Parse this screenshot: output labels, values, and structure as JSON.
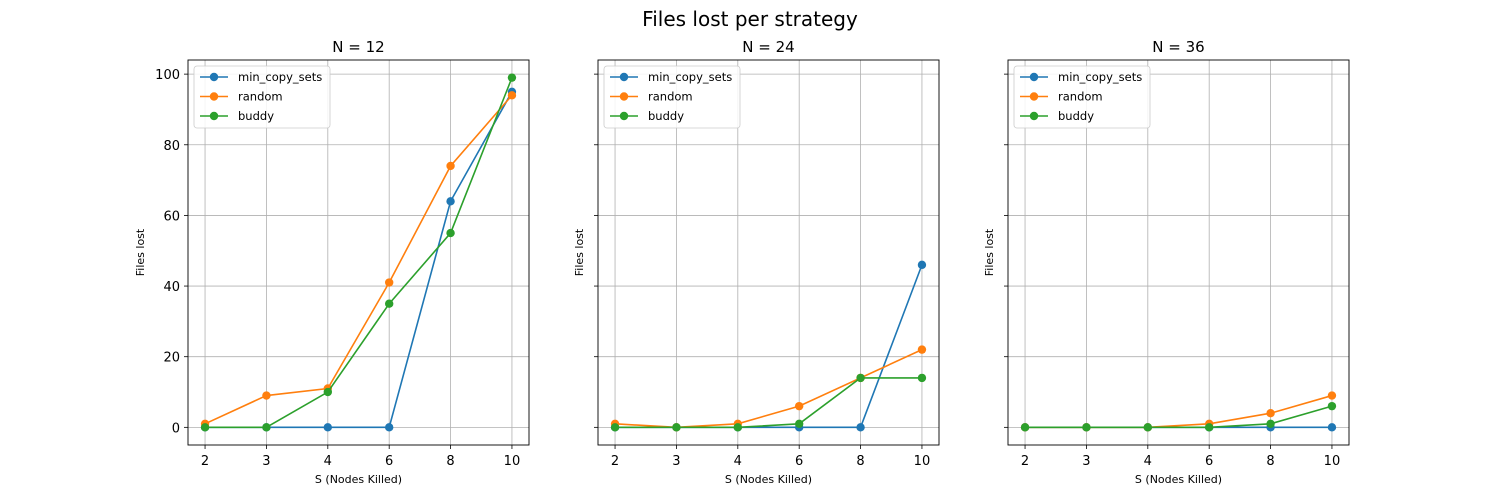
{
  "figure": {
    "title": "Files lost per strategy"
  },
  "chart_data": [
    {
      "type": "line",
      "title": "N = 12",
      "xlabel": "S (Nodes Killed)",
      "ylabel": "Files lost",
      "x": [
        "2",
        "3",
        "4",
        "6",
        "8",
        "10"
      ],
      "ylim": [
        -5,
        104
      ],
      "yticks": [
        0,
        20,
        40,
        60,
        80,
        100
      ],
      "show_ytick_labels": true,
      "grid": true,
      "legend": "top-left",
      "series": [
        {
          "name": "min_copy_sets",
          "color": "#1f77b4",
          "values": [
            0,
            0,
            0,
            0,
            64,
            95
          ]
        },
        {
          "name": "random",
          "color": "#ff7f0e",
          "values": [
            1,
            9,
            11,
            41,
            74,
            94
          ]
        },
        {
          "name": "buddy",
          "color": "#2ca02c",
          "values": [
            0,
            0,
            10,
            35,
            55,
            99
          ]
        }
      ]
    },
    {
      "type": "line",
      "title": "N = 24",
      "xlabel": "S (Nodes Killed)",
      "ylabel": "Files lost",
      "x": [
        "2",
        "3",
        "4",
        "6",
        "8",
        "10"
      ],
      "ylim": [
        -5,
        104
      ],
      "yticks": [
        0,
        20,
        40,
        60,
        80,
        100
      ],
      "show_ytick_labels": false,
      "grid": true,
      "legend": "top-left",
      "series": [
        {
          "name": "min_copy_sets",
          "color": "#1f77b4",
          "values": [
            0,
            0,
            0,
            0,
            0,
            46
          ]
        },
        {
          "name": "random",
          "color": "#ff7f0e",
          "values": [
            1,
            0,
            1,
            6,
            14,
            22
          ]
        },
        {
          "name": "buddy",
          "color": "#2ca02c",
          "values": [
            0,
            0,
            0,
            1,
            14,
            14
          ]
        }
      ]
    },
    {
      "type": "line",
      "title": "N = 36",
      "xlabel": "S (Nodes Killed)",
      "ylabel": "Files lost",
      "x": [
        "2",
        "3",
        "4",
        "6",
        "8",
        "10"
      ],
      "ylim": [
        -5,
        104
      ],
      "yticks": [
        0,
        20,
        40,
        60,
        80,
        100
      ],
      "show_ytick_labels": false,
      "grid": true,
      "legend": "top-left",
      "series": [
        {
          "name": "min_copy_sets",
          "color": "#1f77b4",
          "values": [
            0,
            0,
            0,
            0,
            0,
            0
          ]
        },
        {
          "name": "random",
          "color": "#ff7f0e",
          "values": [
            0,
            0,
            0,
            1,
            4,
            9
          ]
        },
        {
          "name": "buddy",
          "color": "#2ca02c",
          "values": [
            0,
            0,
            0,
            0,
            1,
            6
          ]
        }
      ]
    }
  ]
}
